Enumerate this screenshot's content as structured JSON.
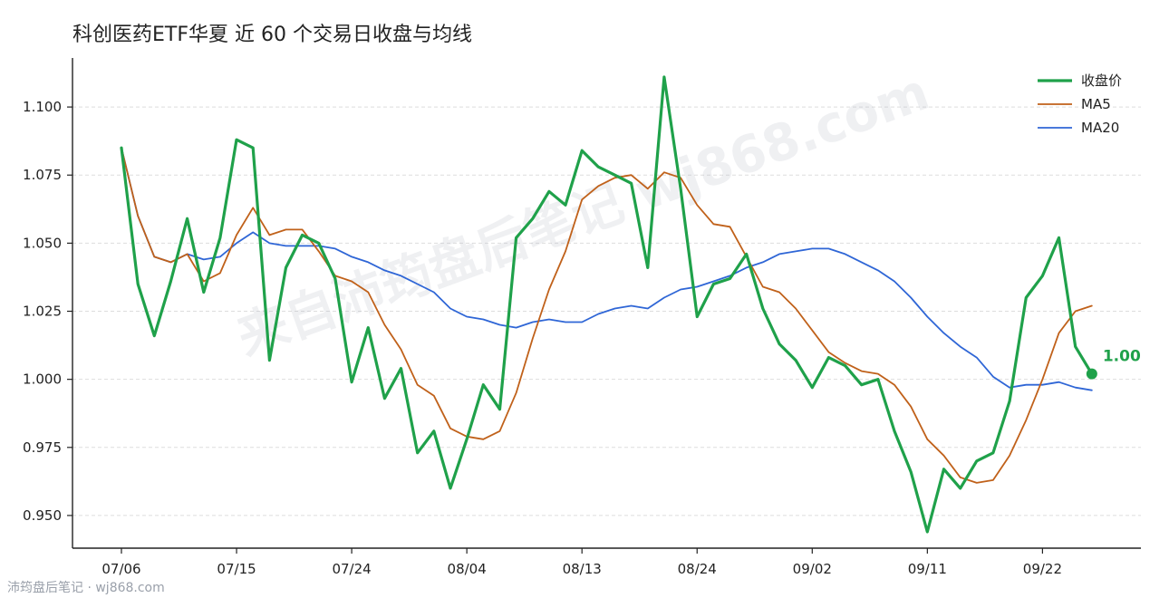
{
  "chart_data": {
    "type": "line",
    "title": "科创医药ETF华夏 近 60 个交易日收盘与均线",
    "xlabel": "",
    "ylabel": "",
    "ylim": [
      0.938,
      1.118
    ],
    "yticks": [
      "0.950",
      "0.975",
      "1.000",
      "1.025",
      "1.050",
      "1.075",
      "1.100"
    ],
    "x_tick_labels": [
      "07/06",
      "07/15",
      "07/24",
      "08/04",
      "08/13",
      "08/24",
      "09/02",
      "09/11",
      "09/22"
    ],
    "x_tick_indices": [
      0,
      7,
      14,
      21,
      28,
      35,
      42,
      49,
      56
    ],
    "n_points": 60,
    "grid": "horizontal dashed",
    "legend_position": "top-right",
    "series": [
      {
        "name": "收盘价",
        "color": "#1fa14a",
        "values": [
          1.085,
          1.035,
          1.016,
          1.036,
          1.059,
          1.032,
          1.052,
          1.088,
          1.085,
          1.007,
          1.041,
          1.053,
          1.05,
          1.037,
          0.999,
          1.019,
          0.993,
          1.004,
          0.973,
          0.981,
          0.96,
          0.978,
          0.998,
          0.989,
          1.052,
          1.059,
          1.069,
          1.064,
          1.084,
          1.078,
          1.075,
          1.072,
          1.041,
          1.111,
          1.07,
          1.023,
          1.035,
          1.037,
          1.046,
          1.026,
          1.013,
          1.007,
          0.997,
          1.008,
          1.005,
          0.998,
          1.0,
          0.981,
          0.966,
          0.944,
          0.967,
          0.96,
          0.97,
          0.973,
          0.992,
          1.03,
          1.038,
          1.052,
          1.012,
          1.002
        ]
      },
      {
        "name": "MA5",
        "color": "#c0611a",
        "values": [
          1.085,
          1.06,
          1.045,
          1.043,
          1.046,
          1.036,
          1.039,
          1.053,
          1.063,
          1.053,
          1.055,
          1.055,
          1.047,
          1.038,
          1.036,
          1.032,
          1.02,
          1.011,
          0.998,
          0.994,
          0.982,
          0.979,
          0.978,
          0.981,
          0.995,
          1.015,
          1.033,
          1.047,
          1.066,
          1.071,
          1.074,
          1.075,
          1.07,
          1.076,
          1.074,
          1.064,
          1.057,
          1.056,
          1.045,
          1.034,
          1.032,
          1.026,
          1.018,
          1.01,
          1.006,
          1.003,
          1.002,
          0.998,
          0.99,
          0.978,
          0.972,
          0.964,
          0.962,
          0.963,
          0.972,
          0.985,
          1.0,
          1.017,
          1.025,
          1.027
        ]
      },
      {
        "name": "MA20",
        "color": "#2f66d6",
        "values": [
          1.085,
          1.06,
          1.045,
          1.043,
          1.046,
          1.044,
          1.045,
          1.05,
          1.054,
          1.05,
          1.049,
          1.049,
          1.049,
          1.048,
          1.045,
          1.043,
          1.04,
          1.038,
          1.035,
          1.032,
          1.026,
          1.023,
          1.022,
          1.02,
          1.019,
          1.021,
          1.022,
          1.021,
          1.021,
          1.024,
          1.026,
          1.027,
          1.026,
          1.03,
          1.033,
          1.034,
          1.036,
          1.038,
          1.041,
          1.043,
          1.046,
          1.047,
          1.048,
          1.048,
          1.046,
          1.043,
          1.04,
          1.036,
          1.03,
          1.023,
          1.017,
          1.012,
          1.008,
          1.001,
          0.997,
          0.998,
          0.998,
          0.999,
          0.997,
          0.996
        ]
      }
    ],
    "end_label": "1.00"
  },
  "watermark": "来自沛筠盘后笔记 wj868.com",
  "footer": "沛筠盘后笔记 · wj868.com"
}
